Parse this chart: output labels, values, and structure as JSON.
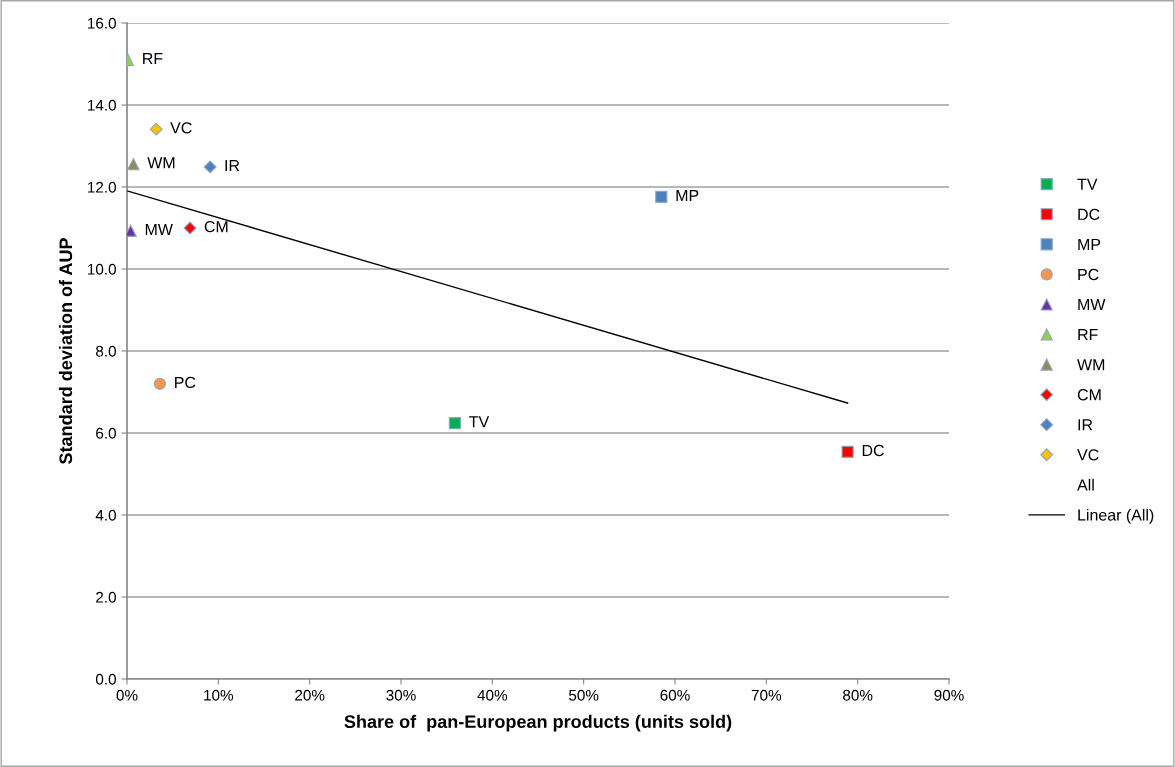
{
  "chart_data": {
    "type": "scatter",
    "xlabel": "Share of  pan-European products (units sold)",
    "ylabel": "Standard deviation of AUP",
    "xlim": [
      0,
      90
    ],
    "xticks": [
      {
        "value": 0,
        "label": "0%"
      },
      {
        "value": 10,
        "label": "10%"
      },
      {
        "value": 20,
        "label": "20%"
      },
      {
        "value": 30,
        "label": "30%"
      },
      {
        "value": 40,
        "label": "40%"
      },
      {
        "value": 50,
        "label": "50%"
      },
      {
        "value": 60,
        "label": "60%"
      },
      {
        "value": 70,
        "label": "70%"
      },
      {
        "value": 80,
        "label": "80%"
      },
      {
        "value": 90,
        "label": "90%"
      }
    ],
    "ylim": [
      0,
      16
    ],
    "yticks": [
      {
        "value": 0,
        "label": "0.0"
      },
      {
        "value": 2,
        "label": "2.0"
      },
      {
        "value": 4,
        "label": "4.0"
      },
      {
        "value": 6,
        "label": "6.0"
      },
      {
        "value": 8,
        "label": "8.0"
      },
      {
        "value": 10,
        "label": "10.0"
      },
      {
        "value": 12,
        "label": "12.0"
      },
      {
        "value": 14,
        "label": "14.0"
      },
      {
        "value": 16,
        "label": "16.0"
      }
    ],
    "grid": "y",
    "legend": "right",
    "series": [
      {
        "name": "TV",
        "marker": "square",
        "color": "#00b050",
        "x": [
          35.9
        ],
        "values": [
          6.24
        ]
      },
      {
        "name": "DC",
        "marker": "square",
        "color": "#ff0000",
        "x": [
          78.9
        ],
        "values": [
          5.54
        ]
      },
      {
        "name": "MP",
        "marker": "square",
        "color": "#4f81bd",
        "x": [
          58.5
        ],
        "values": [
          11.76
        ]
      },
      {
        "name": "PC",
        "marker": "circle",
        "color": "#f79646",
        "x": [
          3.6
        ],
        "values": [
          7.2
        ]
      },
      {
        "name": "MW",
        "marker": "triangle",
        "color": "#7030a0",
        "x": [
          0.4
        ],
        "values": [
          10.93
        ]
      },
      {
        "name": "RF",
        "marker": "triangle",
        "color": "#92d050",
        "x": [
          0.1
        ],
        "values": [
          15.1
        ]
      },
      {
        "name": "WM",
        "marker": "triangle",
        "color": "#948a54",
        "x": [
          0.7
        ],
        "values": [
          12.56
        ]
      },
      {
        "name": "CM",
        "marker": "diamond",
        "color": "#ff0000",
        "x": [
          6.9
        ],
        "values": [
          11.0
        ]
      },
      {
        "name": "IR",
        "marker": "diamond",
        "color": "#4f81bd",
        "x": [
          9.1
        ],
        "values": [
          12.49
        ]
      },
      {
        "name": "VC",
        "marker": "diamond",
        "color": "#ffc000",
        "x": [
          3.2
        ],
        "values": [
          13.41
        ]
      },
      {
        "name": "All",
        "marker": "none"
      },
      {
        "name": "Linear (All)",
        "type": "line",
        "marker": "none",
        "line_style": "solid",
        "color": "#000000",
        "x": [
          0.1,
          78.9
        ],
        "values": [
          11.9,
          6.73
        ]
      }
    ]
  }
}
